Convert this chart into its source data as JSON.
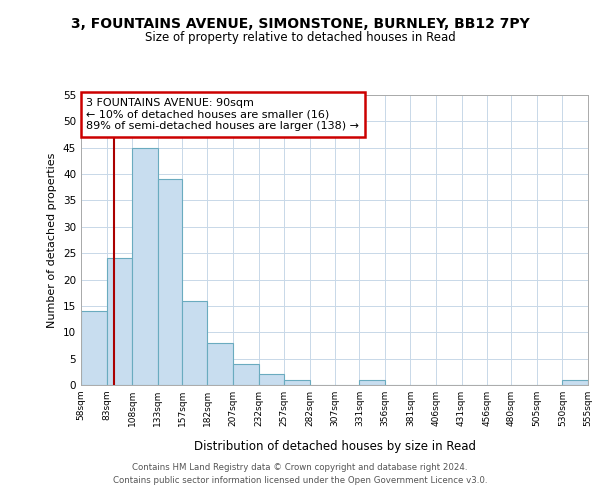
{
  "title": "3, FOUNTAINS AVENUE, SIMONSTONE, BURNLEY, BB12 7PY",
  "subtitle": "Size of property relative to detached houses in Read",
  "xlabel": "Distribution of detached houses by size in Read",
  "ylabel": "Number of detached properties",
  "bar_color": "#c8ddef",
  "bar_edge_color": "#6aabbf",
  "annotation_line_color": "#aa0000",
  "annotation_box_edge_color": "#cc0000",
  "annotation_text": "3 FOUNTAINS AVENUE: 90sqm\n← 10% of detached houses are smaller (16)\n89% of semi-detached houses are larger (138) →",
  "property_line_x": 90,
  "bin_edges": [
    58,
    83,
    108,
    133,
    157,
    182,
    207,
    232,
    257,
    282,
    307,
    331,
    356,
    381,
    406,
    431,
    456,
    480,
    505,
    530,
    555
  ],
  "bin_counts": [
    14,
    24,
    45,
    39,
    16,
    8,
    4,
    2,
    1,
    0,
    0,
    1,
    0,
    0,
    0,
    0,
    0,
    0,
    0,
    1
  ],
  "ylim": [
    0,
    55
  ],
  "yticks": [
    0,
    5,
    10,
    15,
    20,
    25,
    30,
    35,
    40,
    45,
    50,
    55
  ],
  "xtick_labels": [
    "58sqm",
    "83sqm",
    "108sqm",
    "133sqm",
    "157sqm",
    "182sqm",
    "207sqm",
    "232sqm",
    "257sqm",
    "282sqm",
    "307sqm",
    "331sqm",
    "356sqm",
    "381sqm",
    "406sqm",
    "431sqm",
    "456sqm",
    "480sqm",
    "505sqm",
    "530sqm",
    "555sqm"
  ],
  "footer_line1": "Contains HM Land Registry data © Crown copyright and database right 2024.",
  "footer_line2": "Contains public sector information licensed under the Open Government Licence v3.0.",
  "background_color": "#ffffff",
  "grid_color": "#c8d8e8"
}
